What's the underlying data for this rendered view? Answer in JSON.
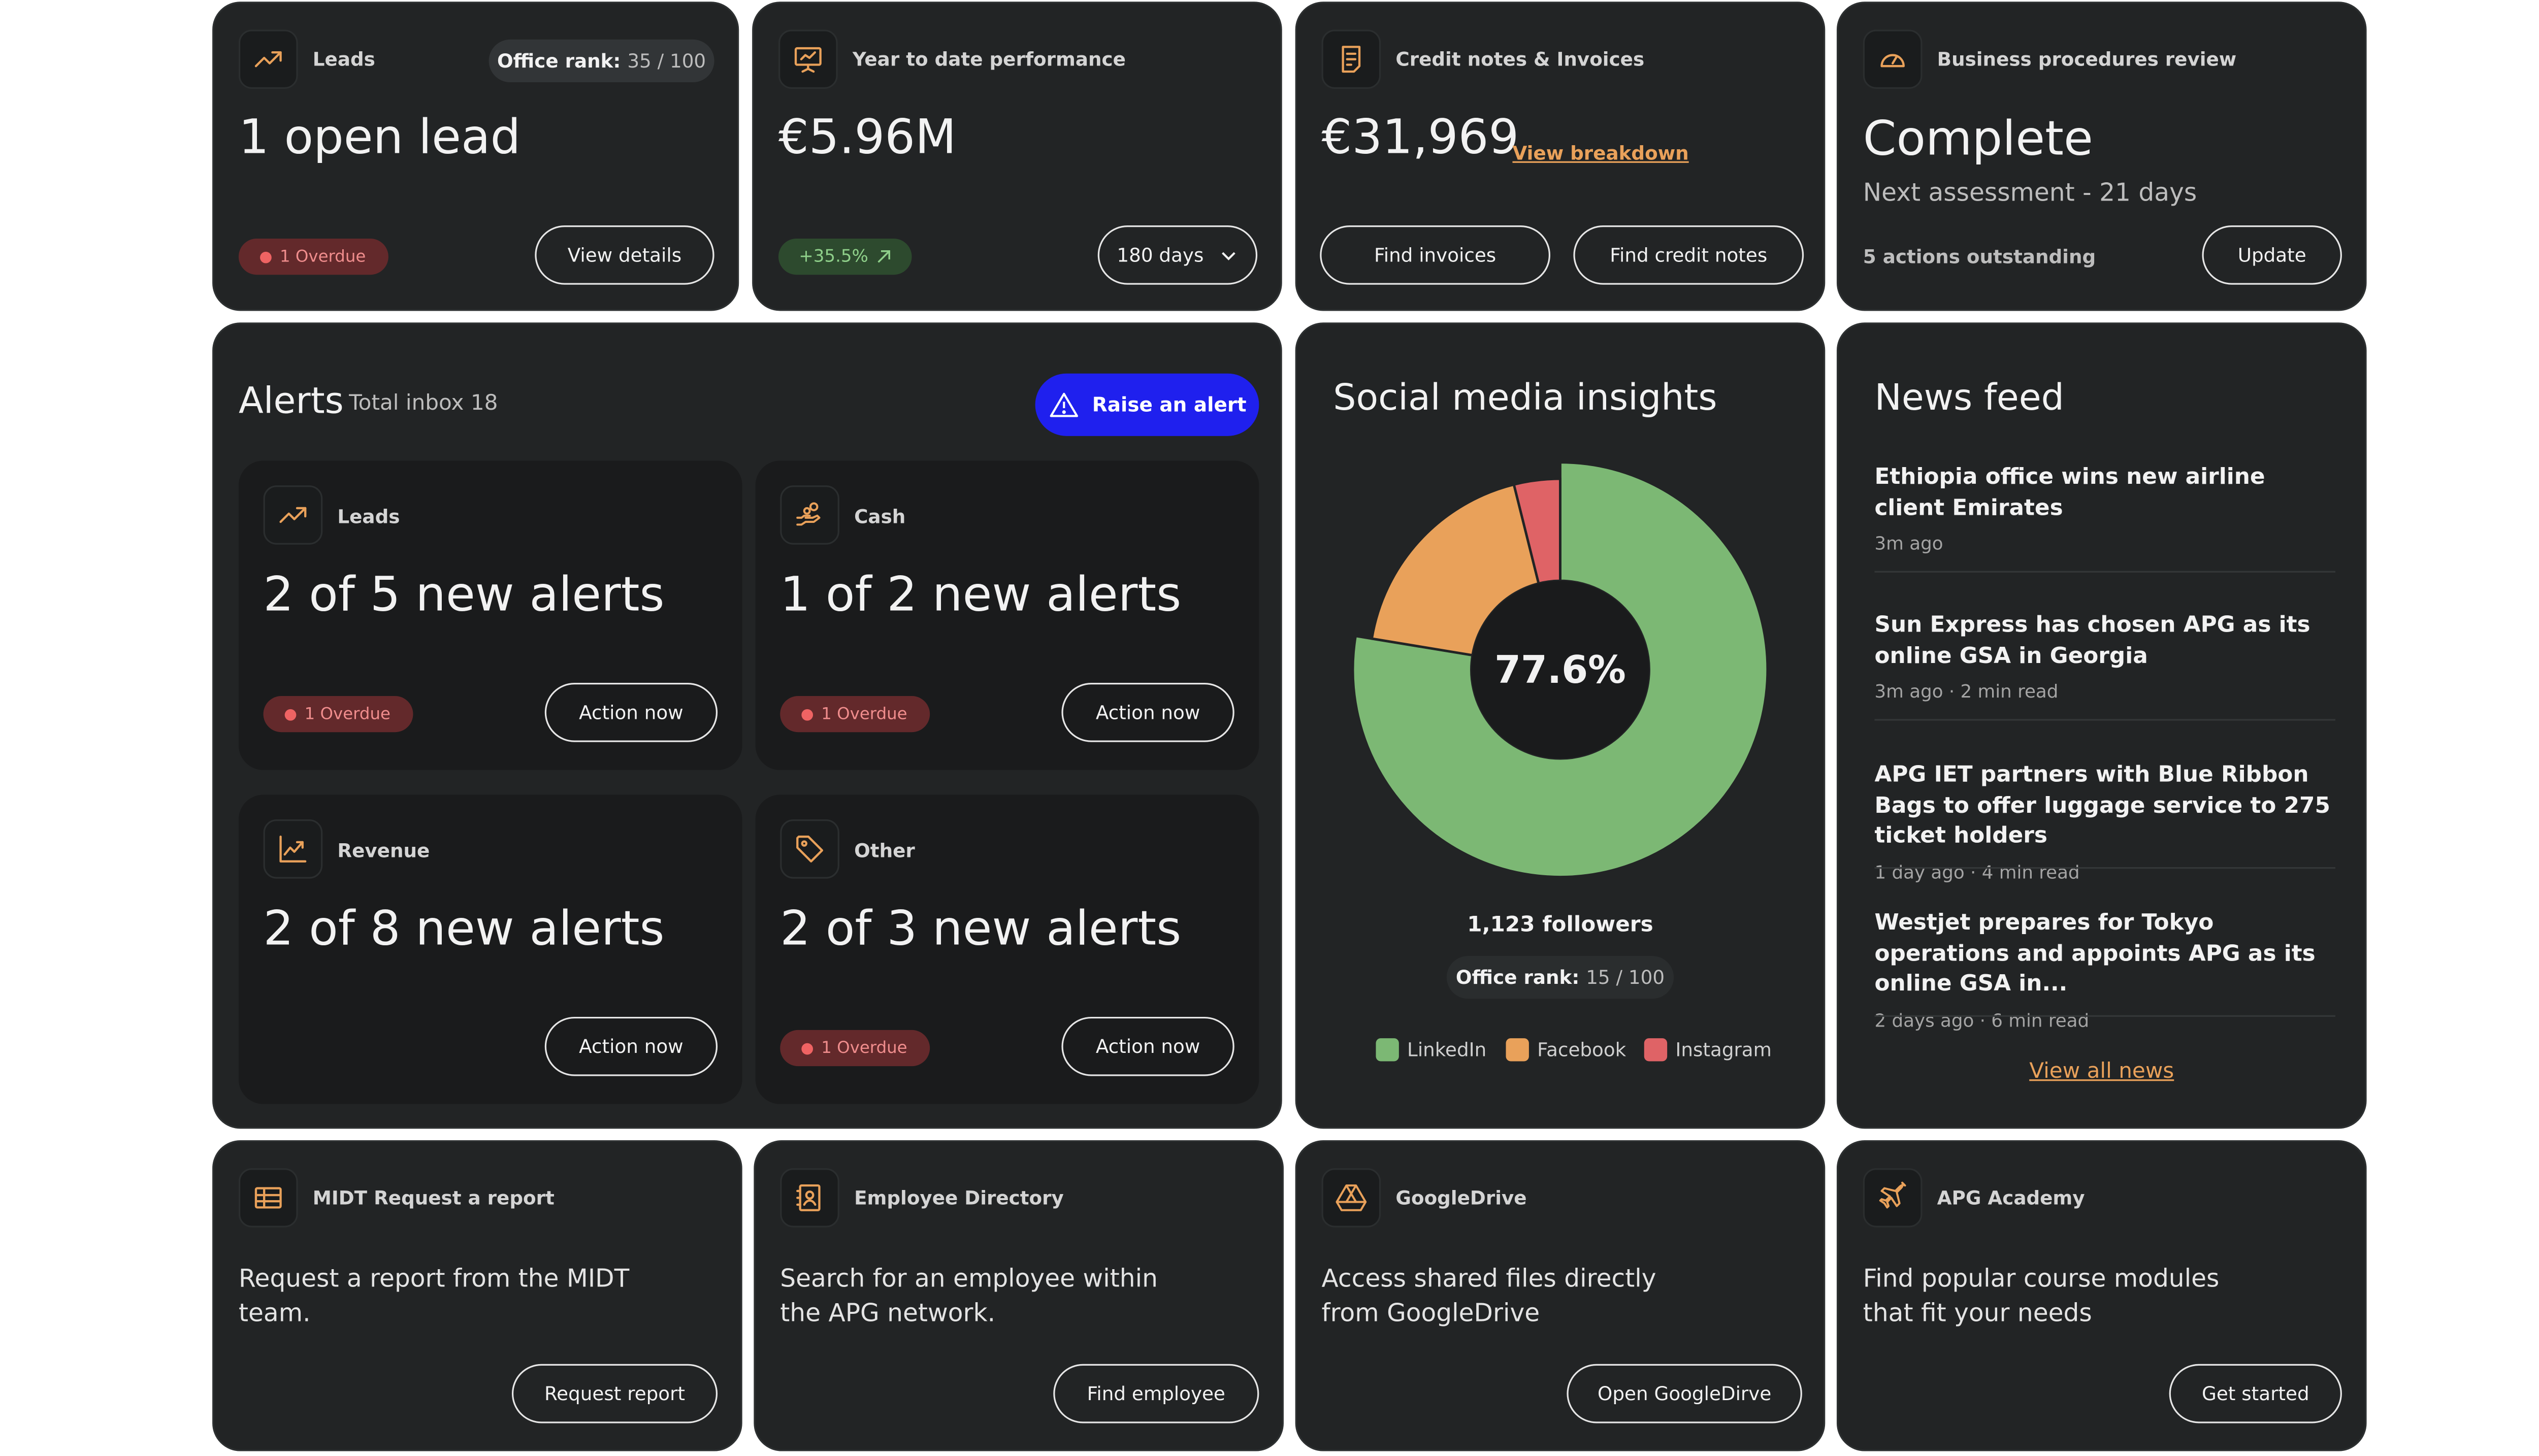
{
  "leads": {
    "title": "Leads",
    "rank_label": "Office rank:",
    "rank_value": "35 / 100",
    "headline": "1 open lead",
    "overdue": "1 Overdue",
    "button": "View details"
  },
  "ytd": {
    "title": "Year to date performance",
    "value": "€5.96M",
    "change": "+35.5%",
    "period": "180 days"
  },
  "credit": {
    "title": "Credit notes & Invoices",
    "value": "€31,969",
    "link": "View breakdown",
    "btn_invoices": "Find invoices",
    "btn_credit": "Find credit notes"
  },
  "procedures": {
    "title": "Business procedures review",
    "status": "Complete",
    "next": "Next assessment - 21 days",
    "outstanding": "5 actions outstanding",
    "button": "Update"
  },
  "alerts": {
    "title": "Alerts",
    "inbox": "Total inbox 18",
    "raise_button": "Raise an alert",
    "items": [
      {
        "title": "Leads",
        "headline": "2 of 5 new alerts",
        "overdue": "1 Overdue",
        "button": "Action now"
      },
      {
        "title": "Cash",
        "headline": "1 of 2 new alerts",
        "overdue": "1 Overdue",
        "button": "Action now"
      },
      {
        "title": "Revenue",
        "headline": "2 of 8 new alerts",
        "button": "Action now"
      },
      {
        "title": "Other",
        "headline": "2 of 3 new alerts",
        "overdue": "1 Overdue",
        "button": "Action now"
      }
    ]
  },
  "social": {
    "title": "Social media insights",
    "center_value": "77.6%",
    "followers": "1,123 followers",
    "rank_label": "Office rank:",
    "rank_value": "15 / 100",
    "colors": {
      "linkedin": "#7cb874",
      "facebook": "#e9a15a",
      "instagram": "#df6366"
    }
  },
  "chart_data": {
    "type": "pie",
    "categories": [
      "LinkedIn",
      "Facebook",
      "Instagram"
    ],
    "values": [
      77.6,
      18.5,
      3.9
    ],
    "center_label": "77.6%",
    "legend": "bottom"
  },
  "news": {
    "title": "News feed",
    "items": [
      {
        "title": "Ethiopia office wins new airline client Emirates",
        "meta": "3m ago"
      },
      {
        "title": "Sun Express has chosen APG as its online GSA in Georgia",
        "meta": "3m ago · 2 min read"
      },
      {
        "title": "APG IET partners with Blue Ribbon Bags to offer luggage service to 275 ticket holders",
        "meta": "1 day ago · 4 min read"
      },
      {
        "title": "Westjet prepares for Tokyo operations and appoints APG as its online GSA in...",
        "meta": "2 days ago · 6 min read"
      }
    ],
    "view_all": "View all news"
  },
  "midt": {
    "title": "MIDT Request a report",
    "text": "Request a report from the MIDT team.",
    "button": "Request report"
  },
  "directory": {
    "title": "Employee Directory",
    "text": "Search for an employee within the APG network.",
    "button": "Find employee"
  },
  "gdrive": {
    "title": "GoogleDrive",
    "text": "Access shared files directly from GoogleDrive",
    "button": "Open GoogleDirve"
  },
  "academy": {
    "title": "APG Academy",
    "text": "Find popular course modules that fit your needs",
    "button": "Get started"
  }
}
